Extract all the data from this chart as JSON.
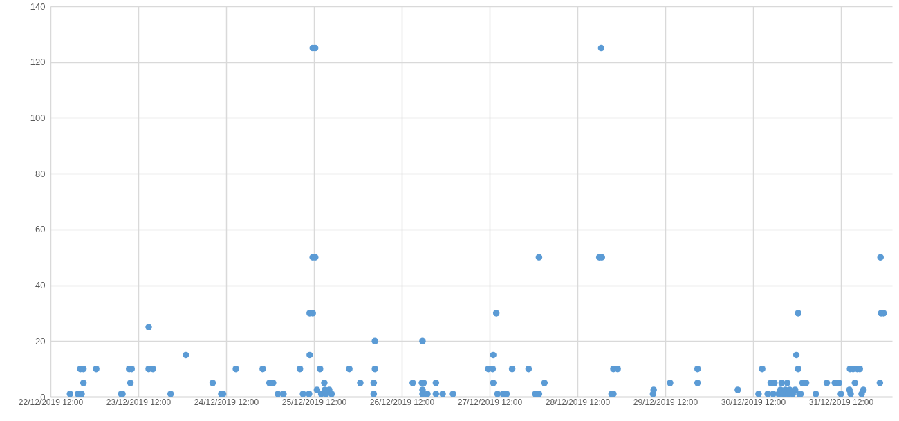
{
  "chart_data": {
    "type": "scatter",
    "marker": "circle",
    "grid": true,
    "legend": false,
    "xlim": [
      "2019-12-22T12:00",
      "2020-01-01T02:00"
    ],
    "xticks": [
      {
        "value": "2019-12-22T12:00",
        "label": "22/12/2019 12:00"
      },
      {
        "value": "2019-12-23T12:00",
        "label": "23/12/2019 12:00"
      },
      {
        "value": "2019-12-24T12:00",
        "label": "24/12/2019 12:00"
      },
      {
        "value": "2019-12-25T12:00",
        "label": "25/12/2019 12:00"
      },
      {
        "value": "2019-12-26T12:00",
        "label": "26/12/2019 12:00"
      },
      {
        "value": "2019-12-27T12:00",
        "label": "27/12/2019 12:00"
      },
      {
        "value": "2019-12-28T12:00",
        "label": "28/12/2019 12:00"
      },
      {
        "value": "2019-12-29T12:00",
        "label": "29/12/2019 12:00"
      },
      {
        "value": "2019-12-30T12:00",
        "label": "30/12/2019 12:00"
      },
      {
        "value": "2019-12-31T12:00",
        "label": "31/12/2019 12:00"
      }
    ],
    "ylim": [
      0,
      140
    ],
    "yticks": [
      0,
      20,
      40,
      60,
      80,
      100,
      120,
      140
    ],
    "series": [
      {
        "color": "#5b9bd5",
        "x": [
          "2019-12-22T17:20",
          "2019-12-22T19:30",
          "2019-12-22T20:10",
          "2019-12-22T20:10",
          "2019-12-22T21:00",
          "2019-12-22T21:00",
          "2019-12-22T20:30",
          "2019-12-23T00:30",
          "2019-12-23T07:20",
          "2019-12-23T07:40",
          "2019-12-23T09:30",
          "2019-12-23T10:10",
          "2019-12-23T09:50",
          "2019-12-23T14:50",
          "2019-12-23T14:50",
          "2019-12-23T16:00",
          "2019-12-23T20:50",
          "2019-12-24T01:00",
          "2019-12-24T08:20",
          "2019-12-24T10:40",
          "2019-12-24T11:10",
          "2019-12-24T14:40",
          "2019-12-24T22:00",
          "2019-12-24T23:50",
          "2019-12-25T00:50",
          "2019-12-25T02:10",
          "2019-12-25T03:40",
          "2019-12-25T08:10",
          "2019-12-25T09:00",
          "2019-12-25T10:40",
          "2019-12-25T10:50",
          "2019-12-25T10:50",
          "2019-12-25T11:40",
          "2019-12-25T11:40",
          "2019-12-25T12:20",
          "2019-12-25T11:40",
          "2019-12-25T12:20",
          "2019-12-25T12:50",
          "2019-12-25T13:40",
          "2019-12-25T14:00",
          "2019-12-25T14:50",
          "2019-12-25T15:00",
          "2019-12-25T15:20",
          "2019-12-25T16:10",
          "2019-12-25T16:50",
          "2019-12-25T21:40",
          "2019-12-26T00:40",
          "2019-12-26T04:20",
          "2019-12-26T04:20",
          "2019-12-26T04:40",
          "2019-12-26T04:40",
          "2019-12-26T15:00",
          "2019-12-26T17:30",
          "2019-12-26T17:40",
          "2019-12-26T17:40",
          "2019-12-26T17:40",
          "2019-12-26T18:00",
          "2019-12-26T19:00",
          "2019-12-26T21:20",
          "2019-12-26T21:20",
          "2019-12-26T23:10",
          "2019-12-27T02:00",
          "2019-12-27T11:40",
          "2019-12-27T12:50",
          "2019-12-27T13:00",
          "2019-12-27T13:00",
          "2019-12-27T13:50",
          "2019-12-27T14:10",
          "2019-12-27T15:40",
          "2019-12-27T16:40",
          "2019-12-27T18:10",
          "2019-12-27T22:40",
          "2019-12-28T00:30",
          "2019-12-28T01:30",
          "2019-12-28T01:30",
          "2019-12-28T03:00",
          "2019-12-28T18:30",
          "2019-12-28T18:00",
          "2019-12-28T18:40",
          "2019-12-28T21:20",
          "2019-12-28T21:50",
          "2019-12-28T21:50",
          "2019-12-28T23:00",
          "2019-12-29T08:40",
          "2019-12-29T08:50",
          "2019-12-29T13:20",
          "2019-12-29T20:50",
          "2019-12-29T20:50",
          "2019-12-30T07:50",
          "2019-12-30T13:30",
          "2019-12-30T14:30",
          "2019-12-30T16:00",
          "2019-12-30T16:50",
          "2019-12-30T17:30",
          "2019-12-30T17:50",
          "2019-12-30T19:00",
          "2019-12-30T19:30",
          "2019-12-30T19:50",
          "2019-12-30T20:20",
          "2019-12-30T20:50",
          "2019-12-30T21:20",
          "2019-12-30T21:40",
          "2019-12-30T22:00",
          "2019-12-30T22:50",
          "2019-12-30T23:30",
          "2019-12-30T23:50",
          "2019-12-31T00:20",
          "2019-12-31T00:20",
          "2019-12-31T00:40",
          "2019-12-31T01:00",
          "2019-12-31T01:30",
          "2019-12-31T02:30",
          "2019-12-31T05:10",
          "2019-12-31T08:10",
          "2019-12-31T10:20",
          "2019-12-31T11:30",
          "2019-12-31T12:00",
          "2019-12-31T14:20",
          "2019-12-31T14:30",
          "2019-12-31T14:40",
          "2019-12-31T15:20",
          "2019-12-31T15:50",
          "2019-12-31T16:30",
          "2019-12-31T17:10",
          "2019-12-31T17:40",
          "2019-12-31T18:10",
          "2019-12-31T22:40",
          "2019-12-31T22:50",
          "2019-12-31T23:00",
          "2019-12-31T23:40"
        ],
        "values": [
          1,
          1,
          1,
          10,
          10,
          5,
          1,
          10,
          1,
          1,
          10,
          10,
          5,
          25,
          10,
          10,
          1,
          15,
          5,
          1,
          1,
          10,
          10,
          5,
          5,
          1,
          1,
          10,
          1,
          1,
          15,
          30,
          30,
          125,
          125,
          50,
          50,
          2.5,
          10,
          1,
          5,
          2.5,
          1,
          2.5,
          1,
          10,
          5,
          5,
          1,
          10,
          20,
          5,
          5,
          1,
          20,
          2.5,
          5,
          1,
          5,
          1,
          1,
          1,
          10,
          10,
          15,
          5,
          30,
          1,
          1,
          1,
          10,
          10,
          1,
          50,
          1,
          5,
          125,
          50,
          50,
          1,
          10,
          1,
          10,
          1,
          2.5,
          5,
          10,
          5,
          2.5,
          1,
          10,
          1,
          5,
          1,
          5,
          1,
          2.5,
          5,
          1,
          2.5,
          5,
          1,
          2.5,
          1,
          2.5,
          15,
          30,
          10,
          1,
          1,
          5,
          5,
          1,
          5,
          5,
          5,
          1,
          2.5,
          10,
          1,
          10,
          5,
          10,
          10,
          1,
          2.5,
          5,
          50,
          30,
          30
        ]
      }
    ]
  }
}
